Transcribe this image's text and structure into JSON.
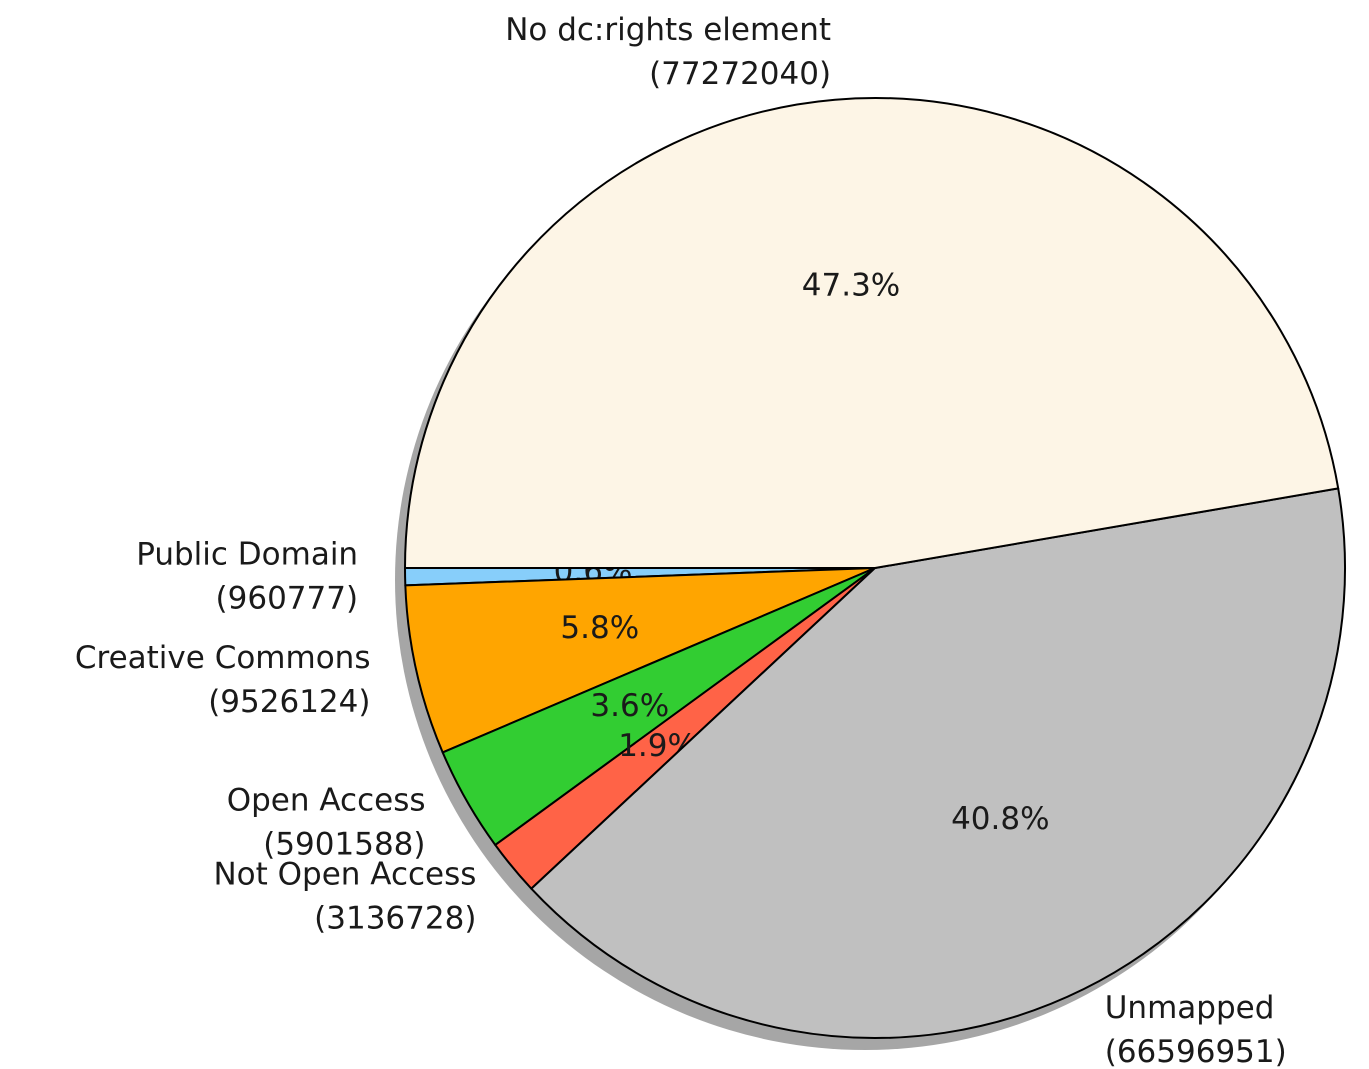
{
  "chart_data": {
    "type": "pie",
    "categories": [
      "Public Domain",
      "Creative Commons",
      "Open Access",
      "Not Open Access",
      "Unmapped",
      "No dc:rights element"
    ],
    "values": [
      960777,
      9526124,
      5901588,
      3136728,
      66596951,
      77272040
    ],
    "value_labels": [
      "(960777)",
      "(9526124)",
      "(5901588)",
      "(3136728)",
      "(66596951)",
      "(77272040)"
    ],
    "percent_labels": [
      "0.6%",
      "5.8%",
      "3.6%",
      "1.9%",
      "40.8%",
      "47.3%"
    ],
    "colors": [
      "#87cefa",
      "#ffa500",
      "#32cd32",
      "#ff6347",
      "#c0c0c0",
      "#fdf5e6"
    ],
    "startangle": 180,
    "shadow": true
  }
}
